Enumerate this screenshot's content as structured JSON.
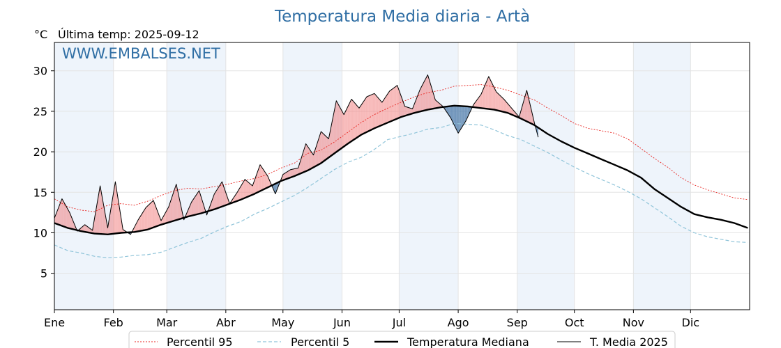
{
  "title": "Temperatura Media diaria - Artà",
  "unit_label": "°C",
  "last_temp_label": "Última temp: 2025-09-12",
  "watermark": "WWW.EMBALSES.NET",
  "colors": {
    "title": "#2f6ea4",
    "p95": "#e8231f",
    "p5": "#8fc4d9",
    "above_fill": "#f08080",
    "below_fill": "#4a78a8",
    "month_band": "#eef4fb",
    "median": "#000000",
    "current": "#000000"
  },
  "chart_data": {
    "type": "line",
    "title": "Temperatura Media diaria - Artà",
    "ylabel": "°C",
    "ylim": [
      0.5,
      33.5
    ],
    "y_ticks": [
      5,
      10,
      15,
      20,
      25,
      30
    ],
    "x_ticks": [
      "Ene",
      "Feb",
      "Mar",
      "Abr",
      "May",
      "Jun",
      "Jul",
      "Ago",
      "Sep",
      "Oct",
      "Nov",
      "Dic"
    ],
    "x_tick_days": [
      1,
      32,
      60,
      91,
      121,
      152,
      182,
      213,
      244,
      274,
      305,
      335
    ],
    "xlim": [
      1,
      366
    ],
    "grid": true,
    "legend_placement": "bottom",
    "series": [
      {
        "name": "Percentil 95",
        "style": "dotted-red",
        "x": [
          1,
          8,
          15,
          22,
          29,
          36,
          43,
          50,
          57,
          64,
          71,
          78,
          85,
          92,
          99,
          106,
          113,
          120,
          127,
          134,
          141,
          148,
          155,
          162,
          169,
          176,
          183,
          190,
          197,
          204,
          211,
          218,
          225,
          232,
          239,
          246,
          253,
          260,
          267,
          274,
          281,
          288,
          295,
          302,
          309,
          316,
          323,
          330,
          337,
          344,
          351,
          358,
          365
        ],
        "values": [
          14.2,
          13.2,
          12.8,
          12.6,
          13.4,
          13.6,
          13.4,
          13.9,
          14.6,
          15.2,
          15.5,
          15.4,
          15.7,
          16.0,
          16.4,
          16.7,
          17.2,
          18.0,
          18.6,
          19.8,
          20.2,
          21.2,
          22.4,
          23.6,
          24.6,
          25.4,
          26.1,
          26.8,
          27.3,
          27.6,
          28.1,
          28.2,
          28.3,
          28.0,
          27.6,
          27.0,
          26.4,
          25.4,
          24.5,
          23.5,
          22.9,
          22.6,
          22.3,
          21.6,
          20.4,
          19.2,
          18.1,
          16.8,
          15.9,
          15.3,
          14.8,
          14.3,
          14.1
        ]
      },
      {
        "name": "Percentil 5",
        "style": "dashed-lightblue",
        "x": [
          1,
          8,
          15,
          22,
          29,
          36,
          43,
          50,
          57,
          64,
          71,
          78,
          85,
          92,
          99,
          106,
          113,
          120,
          127,
          134,
          141,
          148,
          155,
          162,
          169,
          176,
          183,
          190,
          197,
          204,
          211,
          218,
          225,
          232,
          239,
          246,
          253,
          260,
          267,
          274,
          281,
          288,
          295,
          302,
          309,
          316,
          323,
          330,
          337,
          344,
          351,
          358,
          365
        ],
        "values": [
          8.5,
          7.8,
          7.5,
          7.1,
          6.9,
          7.0,
          7.2,
          7.3,
          7.6,
          8.2,
          8.8,
          9.3,
          10.1,
          10.8,
          11.4,
          12.3,
          13.0,
          13.8,
          14.6,
          15.6,
          16.7,
          17.8,
          18.7,
          19.3,
          20.3,
          21.5,
          21.9,
          22.3,
          22.8,
          23.0,
          23.5,
          23.4,
          23.3,
          22.7,
          22.0,
          21.5,
          20.7,
          19.9,
          19.0,
          18.1,
          17.3,
          16.6,
          15.9,
          15.1,
          14.2,
          13.1,
          12.0,
          10.8,
          10.0,
          9.5,
          9.2,
          8.9,
          8.8
        ]
      },
      {
        "name": "Temperatura Mediana",
        "style": "thick-black",
        "x": [
          1,
          8,
          15,
          22,
          29,
          36,
          43,
          50,
          57,
          64,
          71,
          78,
          85,
          92,
          99,
          106,
          113,
          120,
          127,
          134,
          141,
          148,
          155,
          162,
          169,
          176,
          183,
          190,
          197,
          204,
          211,
          218,
          225,
          232,
          239,
          246,
          253,
          260,
          267,
          274,
          281,
          288,
          295,
          302,
          309,
          316,
          323,
          330,
          337,
          344,
          351,
          358,
          365
        ],
        "values": [
          11.2,
          10.6,
          10.2,
          9.9,
          9.8,
          10.0,
          10.1,
          10.4,
          11.0,
          11.5,
          12.0,
          12.4,
          12.9,
          13.5,
          14.1,
          14.8,
          15.6,
          16.4,
          17.0,
          17.7,
          18.6,
          19.8,
          21.0,
          22.1,
          22.9,
          23.6,
          24.3,
          24.8,
          25.2,
          25.5,
          25.7,
          25.6,
          25.4,
          25.2,
          24.8,
          24.1,
          23.3,
          22.2,
          21.3,
          20.5,
          19.8,
          19.1,
          18.4,
          17.7,
          16.8,
          15.4,
          14.3,
          13.2,
          12.3,
          11.9,
          11.6,
          11.2,
          10.6
        ]
      },
      {
        "name": "T. Media 2025",
        "style": "thin-black",
        "x": [
          1,
          5,
          9,
          13,
          17,
          21,
          25,
          29,
          33,
          37,
          41,
          45,
          49,
          53,
          57,
          61,
          65,
          69,
          73,
          77,
          81,
          85,
          89,
          93,
          97,
          101,
          105,
          109,
          113,
          117,
          121,
          125,
          129,
          133,
          137,
          141,
          145,
          149,
          153,
          157,
          161,
          165,
          169,
          173,
          177,
          181,
          185,
          189,
          193,
          197,
          201,
          205,
          209,
          213,
          217,
          221,
          225,
          229,
          233,
          237,
          241,
          245,
          249,
          253,
          255
        ],
        "values": [
          11.8,
          14.2,
          12.5,
          10.2,
          11.0,
          10.3,
          15.8,
          10.6,
          16.3,
          10.4,
          9.8,
          11.6,
          13.1,
          14.0,
          11.5,
          13.2,
          16.0,
          11.6,
          13.8,
          15.2,
          12.2,
          14.8,
          16.3,
          13.6,
          15.0,
          16.6,
          15.8,
          18.4,
          17.0,
          14.8,
          17.2,
          17.8,
          18.0,
          21.0,
          19.6,
          22.5,
          21.6,
          26.3,
          24.6,
          26.5,
          25.4,
          26.8,
          27.2,
          26.1,
          27.5,
          28.2,
          25.6,
          25.3,
          27.7,
          29.5,
          26.4,
          25.6,
          24.2,
          22.3,
          23.8,
          25.8,
          27.1,
          29.3,
          27.4,
          26.5,
          25.4,
          24.3,
          27.6,
          23.6,
          21.8
        ]
      }
    ]
  },
  "legend": {
    "items": [
      {
        "label": "Percentil 95"
      },
      {
        "label": "Percentil 5"
      },
      {
        "label": "Temperatura Mediana"
      },
      {
        "label": "T. Media 2025"
      }
    ]
  }
}
